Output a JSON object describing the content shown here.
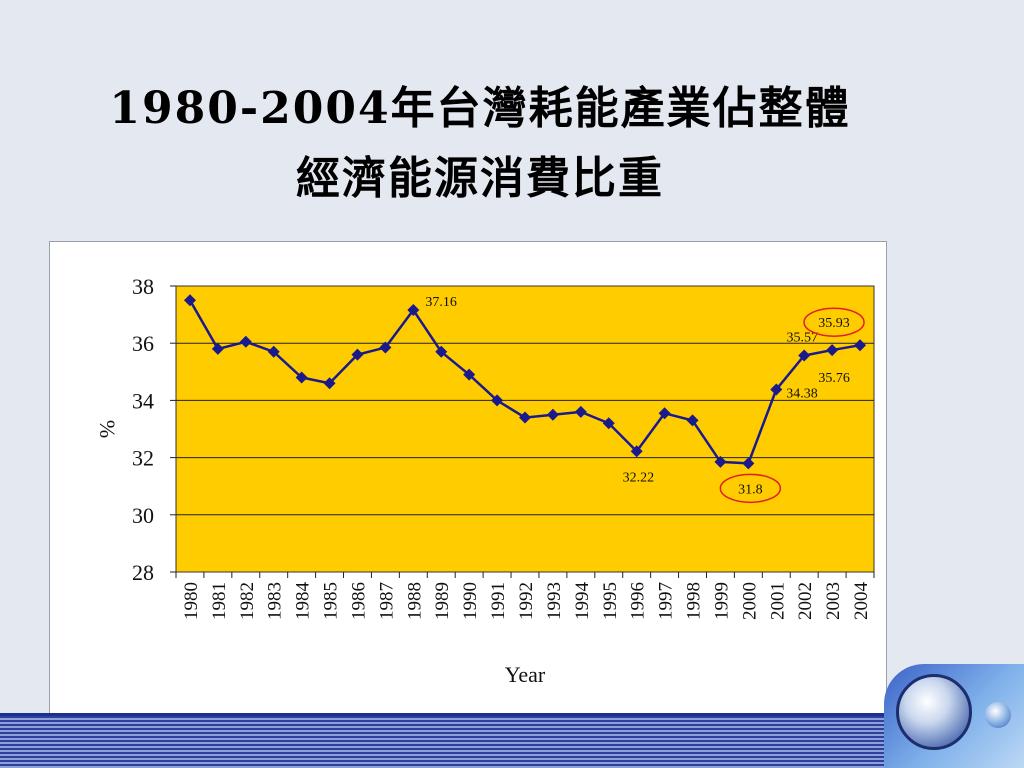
{
  "slide": {
    "title_line1": "1980-2004年台灣耗能產業佔整體",
    "title_line2": "經濟能源消費比重"
  },
  "chart_data": {
    "type": "line",
    "xlabel": "Year",
    "ylabel": "%",
    "ylim": [
      28,
      38
    ],
    "yticks": [
      "28",
      "30",
      "32",
      "34",
      "36",
      "38"
    ],
    "grid": true,
    "plot_background": "#FFCC00",
    "line_color": "#1A1A8C",
    "highlight_color": "#E02020",
    "x": [
      "1980",
      "1981",
      "1982",
      "1983",
      "1984",
      "1985",
      "1986",
      "1987",
      "1988",
      "1989",
      "1990",
      "1991",
      "1992",
      "1993",
      "1994",
      "1995",
      "1996",
      "1997",
      "1998",
      "1999",
      "2000",
      "2001",
      "2002",
      "2003",
      "2004"
    ],
    "values": [
      37.5,
      35.8,
      36.05,
      35.7,
      34.8,
      34.6,
      35.6,
      35.85,
      37.16,
      35.7,
      34.9,
      34.0,
      33.4,
      33.5,
      33.6,
      33.2,
      32.22,
      33.55,
      33.3,
      31.85,
      31.8,
      34.38,
      35.57,
      35.76,
      35.93
    ],
    "annotations": [
      {
        "year": "1988",
        "text": "37.16"
      },
      {
        "year": "1996",
        "text": "32.22"
      },
      {
        "year": "2000",
        "text": "31.8",
        "circled": true
      },
      {
        "year": "2001",
        "text": "34.38"
      },
      {
        "year": "2002",
        "text": "35.57"
      },
      {
        "year": "2003",
        "text": "35.76"
      },
      {
        "year": "2004",
        "text": "35.93",
        "circled": true
      }
    ]
  }
}
